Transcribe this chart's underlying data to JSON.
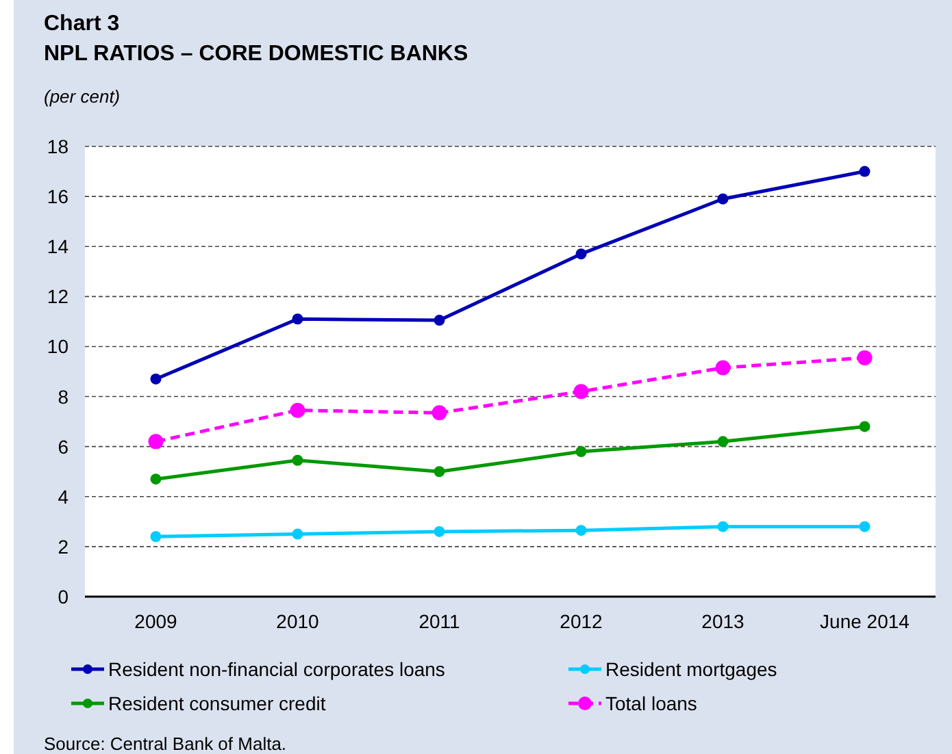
{
  "chart_data": {
    "type": "line",
    "title": "Chart 3",
    "subtitle": "NPL RATIOS – CORE DOMESTIC BANKS",
    "ylabel": "(per cent)",
    "categories": [
      "2009",
      "2010",
      "2011",
      "2012",
      "2013",
      "June 2014"
    ],
    "series": [
      {
        "name": "Resident non-financial corporates loans",
        "color": "#0000b4",
        "values": [
          8.7,
          11.1,
          11.05,
          13.7,
          15.9,
          17.0
        ]
      },
      {
        "name": "Resident mortgages",
        "color": "#00ccff",
        "values": [
          2.4,
          2.5,
          2.6,
          2.65,
          2.8,
          2.8
        ]
      },
      {
        "name": "Resident consumer credit",
        "color": "#009900",
        "values": [
          4.7,
          5.45,
          5.0,
          5.8,
          6.2,
          6.8
        ]
      },
      {
        "name": "Total loans",
        "color": "#ff00ff",
        "values": [
          6.2,
          7.45,
          7.35,
          8.2,
          9.15,
          9.55
        ],
        "line_style": "dashed"
      }
    ],
    "ylim": [
      0,
      18
    ],
    "yticks": [
      0,
      2,
      4,
      6,
      8,
      10,
      12,
      14,
      16,
      18
    ],
    "grid": "y",
    "marker": "circle",
    "legend": "bottom",
    "annotations": [
      "Source: Central Bank of Malta."
    ]
  }
}
